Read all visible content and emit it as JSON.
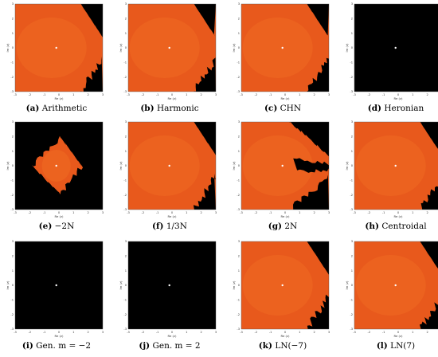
{
  "figure": {
    "colors": {
      "orange": "#e8591c",
      "orange_light": "#ef6a22",
      "black": "#000000",
      "point": "#ffffff"
    },
    "axis": {
      "xlabel": "Re (z)",
      "ylabel": "Im (z)",
      "xticks": [
        "-3",
        "-2",
        "-1",
        "0",
        "1",
        "2",
        "3"
      ],
      "yticks": [
        "3",
        "2",
        "1",
        "0",
        "-1",
        "-2",
        "-3"
      ]
    },
    "panels": [
      {
        "label": "(a)",
        "name": "Arithmetic",
        "pattern": "basin-right"
      },
      {
        "label": "(b)",
        "name": "Harmonic",
        "pattern": "basin-right"
      },
      {
        "label": "(c)",
        "name": "CHN",
        "pattern": "basin-right"
      },
      {
        "label": "(d)",
        "name": "Heronian",
        "pattern": "black"
      },
      {
        "label": "(e)",
        "name": "−2N",
        "pattern": "island"
      },
      {
        "label": "(f)",
        "name": "1/3N",
        "pattern": "basin-right"
      },
      {
        "label": "(g)",
        "name": "2N",
        "pattern": "basin-wide"
      },
      {
        "label": "(h)",
        "name": "Centroidal",
        "pattern": "basin-right"
      },
      {
        "label": "(i)",
        "name": "Gen. m = −2",
        "pattern": "black"
      },
      {
        "label": "(j)",
        "name": "Gen. m = 2",
        "pattern": "black"
      },
      {
        "label": "(k)",
        "name": "LN(−7)",
        "pattern": "basin-right"
      },
      {
        "label": "(l)",
        "name": "LN(7)",
        "pattern": "basin-right"
      }
    ]
  }
}
